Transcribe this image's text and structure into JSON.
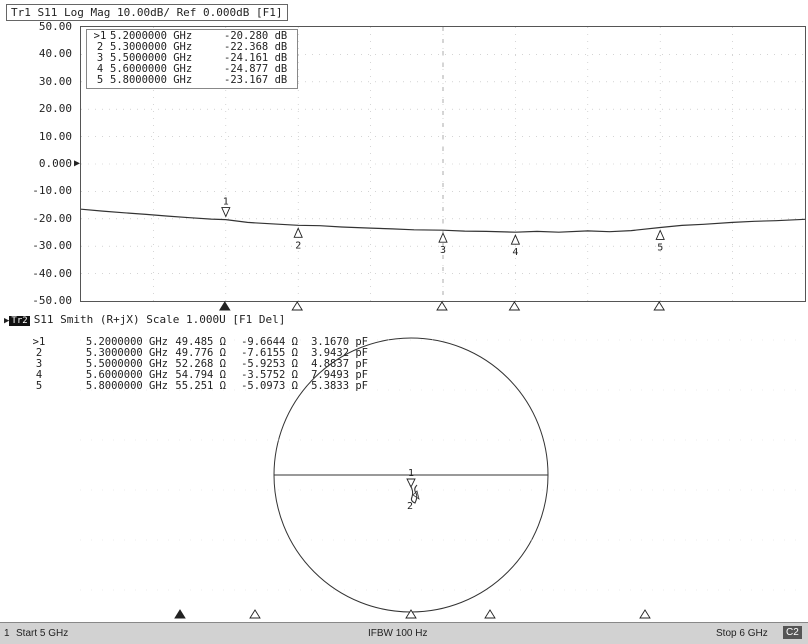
{
  "trace1": {
    "title": "Tr1 S11 Log Mag 10.00dB/ Ref 0.000dB [F1]",
    "y_ticks": [
      "50.00",
      "40.00",
      "30.00",
      "20.00",
      "10.00",
      "0.000",
      "-10.00",
      "-20.00",
      "-30.00",
      "-40.00",
      "-50.00"
    ],
    "markers": [
      {
        "label": ">1",
        "freq": "5.2000000 GHz",
        "value": "-20.280 dB"
      },
      {
        "label": "2",
        "freq": "5.3000000 GHz",
        "value": "-22.368 dB"
      },
      {
        "label": "3",
        "freq": "5.5000000 GHz",
        "value": "-24.161 dB"
      },
      {
        "label": "4",
        "freq": "5.6000000 GHz",
        "value": "-24.877 dB"
      },
      {
        "label": "5",
        "freq": "5.8000000 GHz",
        "value": "-23.167 dB"
      }
    ]
  },
  "trace2": {
    "badge": "Tr2",
    "title": "S11 Smith (R+jX) Scale 1.000U [F1 Del]",
    "markers": [
      {
        "label": ">1",
        "freq": "5.2000000 GHz",
        "r": "49.485 Ω",
        "x": "-9.6644 Ω",
        "c": "3.1670 pF"
      },
      {
        "label": "2",
        "freq": "5.3000000 GHz",
        "r": "49.776 Ω",
        "x": "-7.6155 Ω",
        "c": "3.9432 pF"
      },
      {
        "label": "3",
        "freq": "5.5000000 GHz",
        "r": "52.268 Ω",
        "x": "-5.9253 Ω",
        "c": "4.8837 pF"
      },
      {
        "label": "4",
        "freq": "5.6000000 GHz",
        "r": "54.794 Ω",
        "x": "-3.5752 Ω",
        "c": "7.9493 pF"
      },
      {
        "label": "5",
        "freq": "5.8000000 GHz",
        "r": "55.251 Ω",
        "x": "-5.0973 Ω",
        "c": "5.3833 pF"
      }
    ],
    "smith_marker_labels": [
      "1",
      "2"
    ]
  },
  "chart_data": {
    "type": "line",
    "x_unit": "GHz",
    "ylim": [
      -50,
      50
    ],
    "xlim": [
      5,
      6
    ],
    "series": [
      {
        "x": [
          5.0,
          5.03,
          5.06,
          5.09,
          5.12,
          5.15,
          5.18,
          5.2,
          5.23,
          5.26,
          5.3,
          5.33,
          5.36,
          5.4,
          5.43,
          5.46,
          5.5,
          5.53,
          5.56,
          5.6,
          5.63,
          5.66,
          5.7,
          5.73,
          5.76,
          5.8,
          5.83,
          5.86,
          5.9,
          5.93,
          5.96,
          6.0
        ],
        "y": [
          -16.5,
          -17.2,
          -17.8,
          -18.4,
          -19.0,
          -19.6,
          -20.1,
          -20.28,
          -21.3,
          -21.8,
          -22.37,
          -22.5,
          -23.0,
          -23.4,
          -23.7,
          -24.0,
          -24.16,
          -24.5,
          -24.6,
          -24.88,
          -24.6,
          -24.9,
          -24.4,
          -24.7,
          -24.3,
          -23.17,
          -22.4,
          -22.0,
          -21.3,
          -20.9,
          -20.7,
          -20.2
        ]
      }
    ],
    "markers": [
      {
        "n": "1",
        "x": 5.2,
        "y": -20.28
      },
      {
        "n": "2",
        "x": 5.3,
        "y": -22.368
      },
      {
        "n": "3",
        "x": 5.5,
        "y": -24.161
      },
      {
        "n": "4",
        "x": 5.6,
        "y": -24.877
      },
      {
        "n": "5",
        "x": 5.8,
        "y": -23.167
      }
    ]
  },
  "status": {
    "channel": "1",
    "start": "Start 5 GHz",
    "ifbw": "IFBW 100 Hz",
    "stop": "Stop 6 GHz",
    "badge": "C2"
  },
  "colors": {
    "trace": "#333333",
    "grid": "#bbbbbb",
    "status_bg": "#d2d2d2"
  }
}
